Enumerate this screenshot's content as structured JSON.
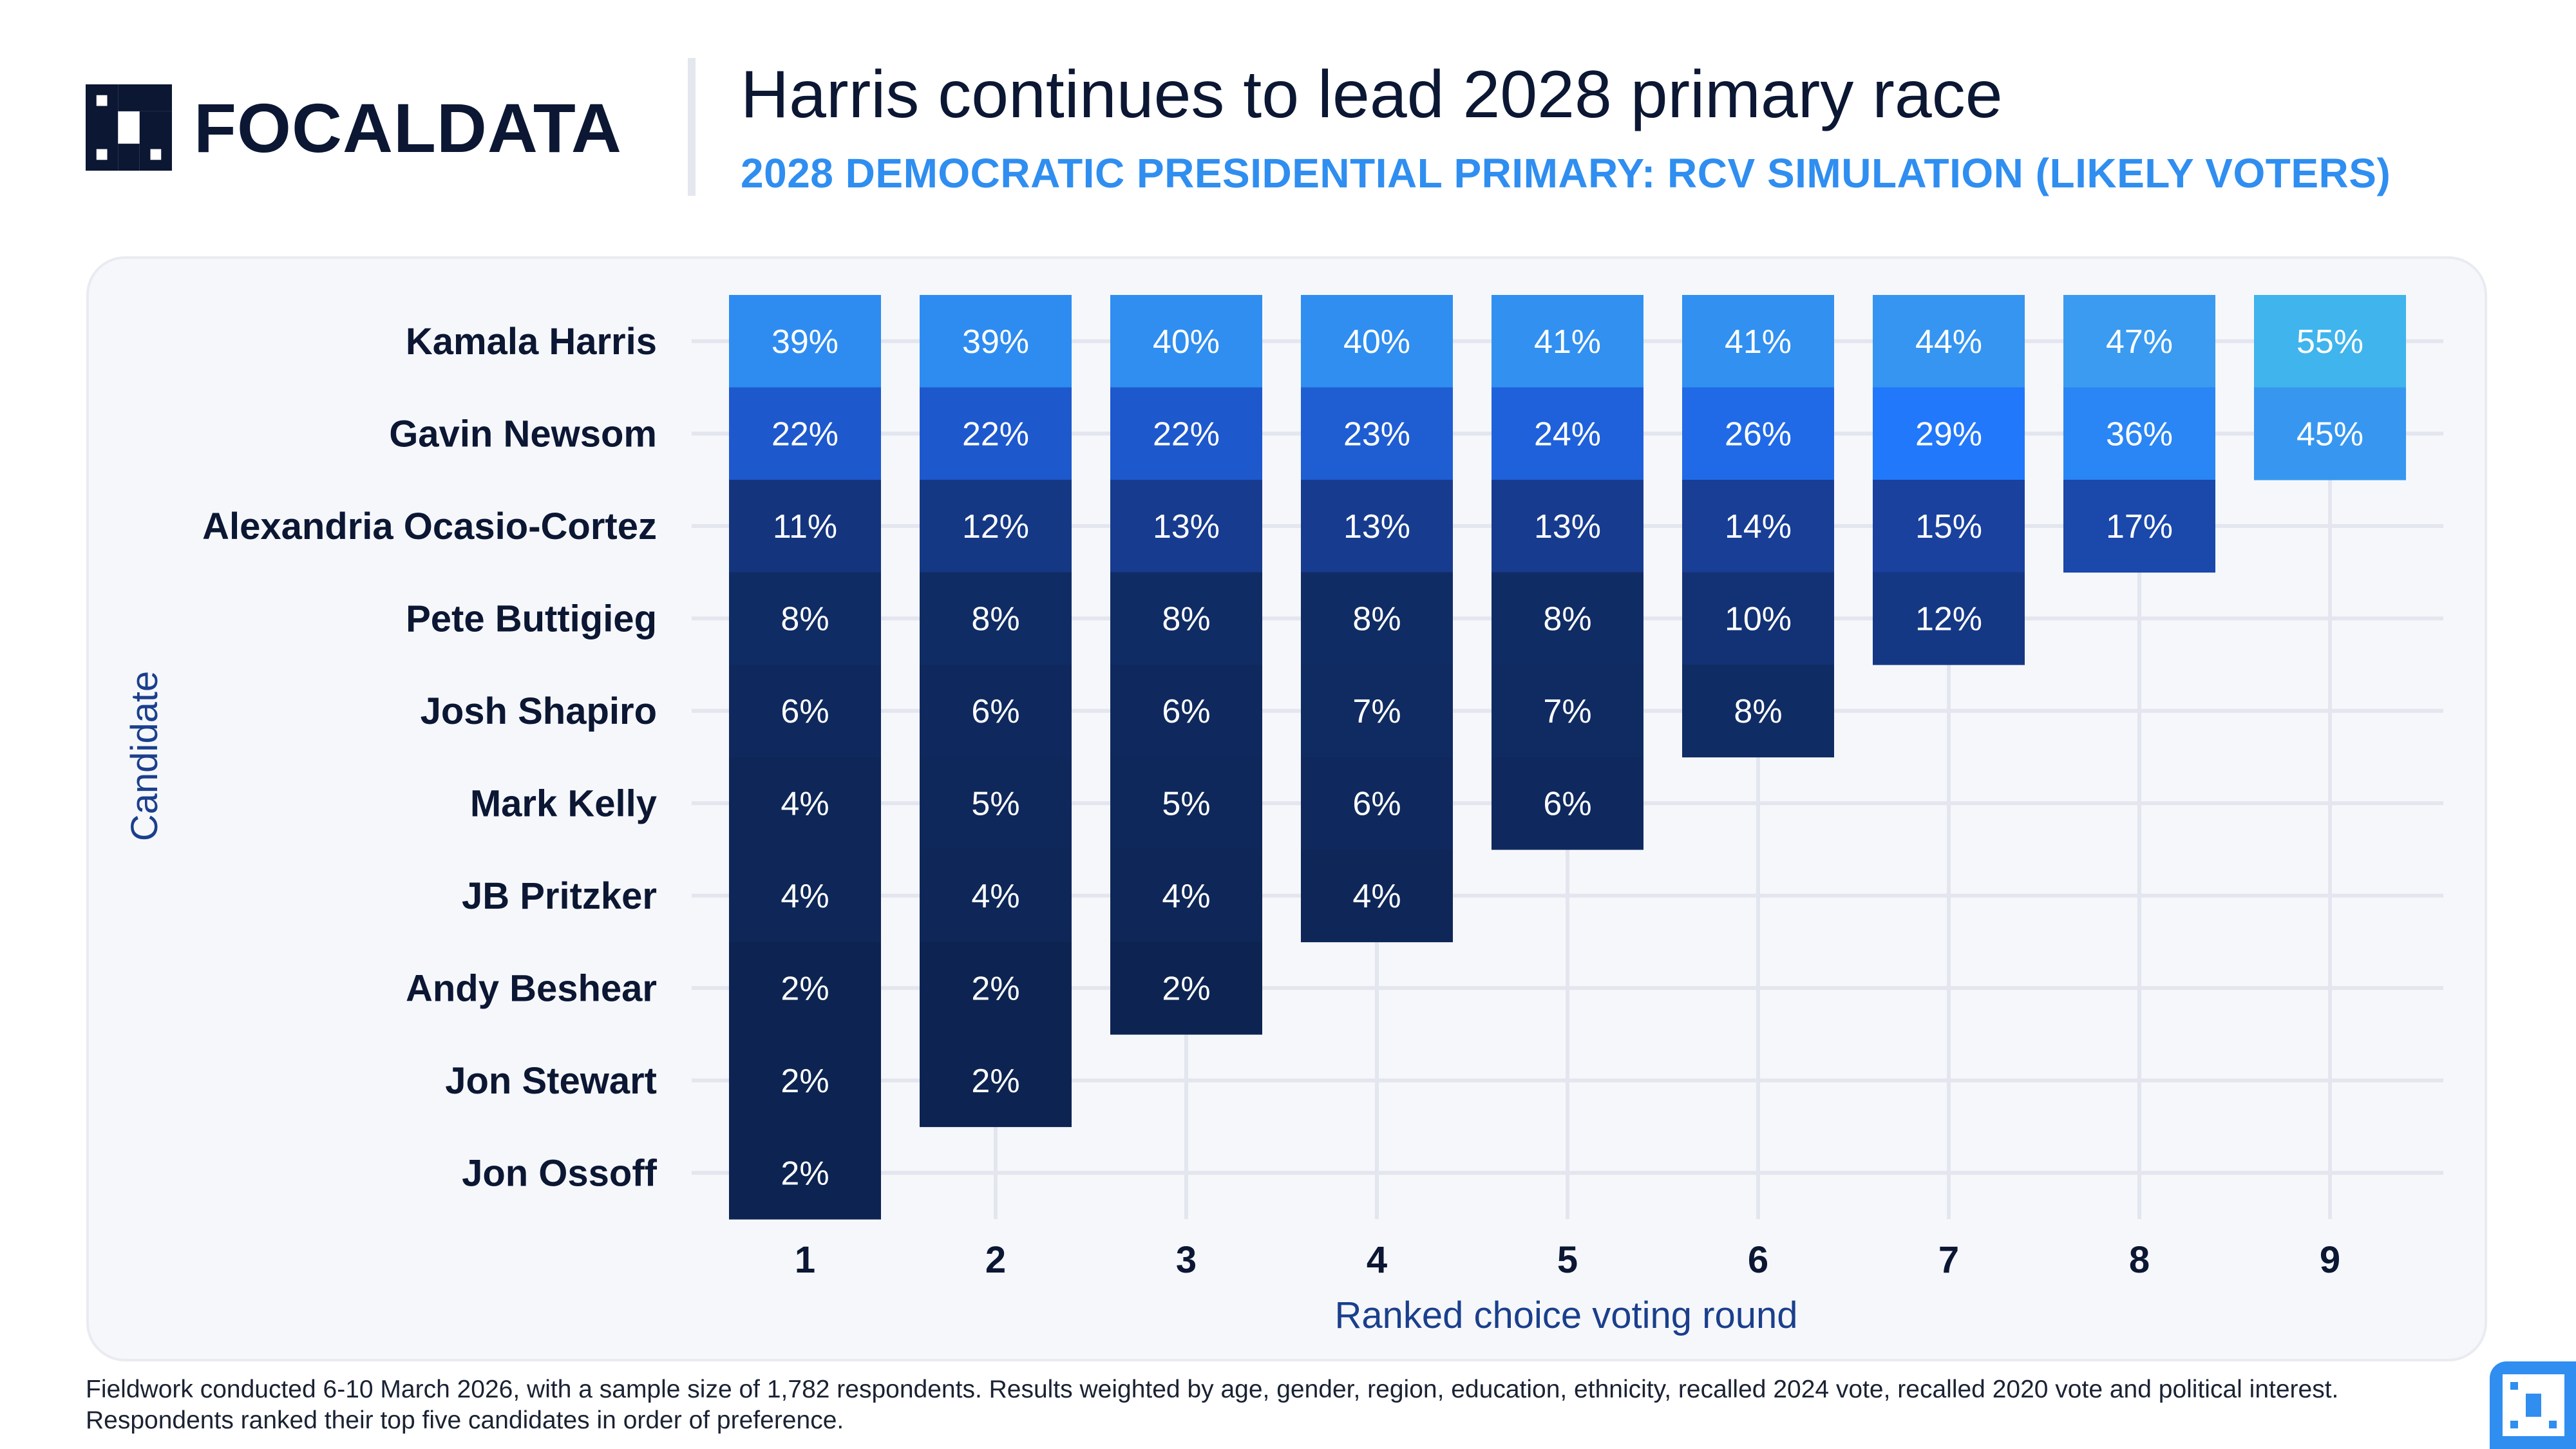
{
  "brand": {
    "name": "FOCALDATA"
  },
  "header": {
    "title": "Harris continues to lead 2028 primary race",
    "subtitle": "2028 DEMOCRATIC PRESIDENTIAL PRIMARY: RCV SIMULATION (LIKELY VOTERS)"
  },
  "footer": {
    "note_line1": "Fieldwork conducted 6-10 March 2026, with a sample size of 1,782 respondents. Results weighted by age, gender, region, education, ethnicity, recalled 2024 vote, recalled 2020 vote and political interest.",
    "note_line2": "Respondents ranked their top five candidates in order of preference."
  },
  "colors": {
    "accent": "#2f8ef0",
    "text_dark": "#0b1733",
    "axis_label": "#1a3f8c",
    "darkest_cell": "#0d2452",
    "panel_bg": "#f6f7fb"
  },
  "chart_data": {
    "type": "heatmap",
    "xlabel": "Ranked choice voting round",
    "ylabel": "Candidate",
    "x": [
      "1",
      "2",
      "3",
      "4",
      "5",
      "6",
      "7",
      "8",
      "9"
    ],
    "categories": [
      "Kamala Harris",
      "Gavin Newsom",
      "Alexandria Ocasio-Cortez",
      "Pete Buttigieg",
      "Josh Shapiro",
      "Mark Kelly",
      "JB Pritzker",
      "Andy Beshear",
      "Jon Stewart",
      "Jon Ossoff"
    ],
    "value_format": "{}%",
    "grid": true,
    "series": [
      {
        "name": "1",
        "values": [
          39,
          22,
          11,
          8,
          6,
          4,
          4,
          2,
          2,
          2
        ]
      },
      {
        "name": "2",
        "values": [
          39,
          22,
          12,
          8,
          6,
          5,
          4,
          2,
          2,
          null
        ]
      },
      {
        "name": "3",
        "values": [
          40,
          22,
          13,
          8,
          6,
          5,
          4,
          2,
          null,
          null
        ]
      },
      {
        "name": "4",
        "values": [
          40,
          23,
          13,
          8,
          7,
          6,
          4,
          null,
          null,
          null
        ]
      },
      {
        "name": "5",
        "values": [
          41,
          24,
          13,
          8,
          7,
          6,
          null,
          null,
          null,
          null
        ]
      },
      {
        "name": "6",
        "values": [
          41,
          26,
          14,
          10,
          8,
          null,
          null,
          null,
          null,
          null
        ]
      },
      {
        "name": "7",
        "values": [
          44,
          29,
          15,
          12,
          null,
          null,
          null,
          null,
          null,
          null
        ]
      },
      {
        "name": "8",
        "values": [
          47,
          36,
          17,
          null,
          null,
          null,
          null,
          null,
          null,
          null
        ]
      },
      {
        "name": "9",
        "values": [
          55,
          45,
          null,
          null,
          null,
          null,
          null,
          null,
          null,
          null
        ]
      }
    ]
  }
}
